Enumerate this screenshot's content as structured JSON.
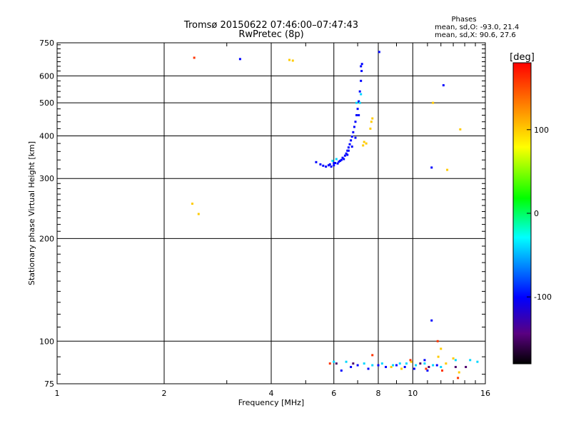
{
  "header": {
    "title": "Tromsø 20150622 07:46:00–07:47:43",
    "subtitle": "RwPretec (8p)"
  },
  "stats": {
    "heading": "Phases",
    "line_o": "mean, sd,O: -93.0, 21.4",
    "line_x": "mean, sd,X:  90.6, 27.6"
  },
  "chart_data": {
    "type": "scatter",
    "xlabel": "Frequency [MHz]",
    "ylabel": "Stationary phase Virtual Height [km]",
    "x_scale": "log",
    "y_scale": "log",
    "xlim": [
      1,
      16
    ],
    "ylim": [
      75,
      750
    ],
    "x_ticks": [
      1,
      2,
      4,
      6,
      8,
      10,
      16
    ],
    "y_ticks": [
      75,
      100,
      200,
      300,
      400,
      500,
      600,
      750
    ],
    "grid": true,
    "colorbar": {
      "label": "[deg]",
      "range": [
        -180,
        180
      ],
      "ticks": [
        100,
        0,
        -100
      ],
      "colormap": "rainbow"
    },
    "series": [
      {
        "color_value_deg": -100,
        "points": [
          [
            5.35,
            335
          ],
          [
            5.5,
            330
          ],
          [
            5.6,
            327
          ],
          [
            5.7,
            325
          ],
          [
            5.8,
            328
          ],
          [
            5.9,
            325
          ],
          [
            6.0,
            328
          ],
          [
            6.05,
            333
          ],
          [
            6.15,
            332
          ],
          [
            6.2,
            336
          ],
          [
            6.3,
            340
          ],
          [
            6.35,
            345
          ],
          [
            6.45,
            350
          ],
          [
            6.5,
            355
          ],
          [
            6.55,
            362
          ],
          [
            6.6,
            370
          ],
          [
            6.65,
            378
          ],
          [
            6.7,
            388
          ],
          [
            6.75,
            398
          ],
          [
            6.8,
            410
          ],
          [
            6.85,
            425
          ],
          [
            6.9,
            440
          ],
          [
            6.95,
            460
          ],
          [
            7.0,
            480
          ],
          [
            7.05,
            505
          ],
          [
            7.1,
            540
          ],
          [
            7.15,
            580
          ],
          [
            7.18,
            620
          ],
          [
            7.2,
            650
          ],
          [
            7.15,
            640
          ],
          [
            6.4,
            342
          ],
          [
            6.25,
            338
          ],
          [
            6.55,
            352
          ],
          [
            6.75,
            372
          ],
          [
            6.9,
            395
          ],
          [
            5.85,
            330
          ],
          [
            6.0,
            333
          ],
          [
            6.6,
            362
          ],
          [
            7.05,
            460
          ],
          [
            8.05,
            705
          ],
          [
            3.27,
            672
          ],
          [
            12.2,
            563
          ],
          [
            11.3,
            323
          ],
          [
            11.3,
            115
          ],
          [
            6.7,
            84
          ],
          [
            7.0,
            85
          ],
          [
            7.5,
            83
          ],
          [
            8.0,
            85
          ],
          [
            8.4,
            84
          ],
          [
            9.5,
            84
          ],
          [
            10.1,
            83
          ],
          [
            11.0,
            82
          ],
          [
            11.7,
            85
          ],
          [
            6.3,
            82
          ],
          [
            9.0,
            85
          ],
          [
            10.8,
            88
          ]
        ]
      },
      {
        "color_value_deg": 100,
        "points": [
          [
            7.25,
            375
          ],
          [
            7.4,
            380
          ],
          [
            7.6,
            420
          ],
          [
            7.65,
            440
          ],
          [
            7.7,
            450
          ],
          [
            4.5,
            668
          ],
          [
            4.6,
            665
          ],
          [
            12.5,
            318
          ],
          [
            13.6,
            418
          ],
          [
            11.4,
            500
          ],
          [
            2.4,
            253
          ],
          [
            2.5,
            236
          ],
          [
            7.3,
            384
          ],
          [
            12.0,
            95
          ],
          [
            11.8,
            90
          ],
          [
            12.4,
            86
          ],
          [
            13.0,
            89
          ],
          [
            9.9,
            87
          ],
          [
            8.7,
            84
          ],
          [
            9.3,
            83
          ],
          [
            13.5,
            81
          ]
        ]
      },
      {
        "color_value_deg": -40,
        "points": [
          [
            6.0,
            87
          ],
          [
            6.5,
            87
          ],
          [
            7.3,
            86
          ],
          [
            7.7,
            85
          ],
          [
            8.2,
            86
          ],
          [
            8.8,
            85
          ],
          [
            9.2,
            86
          ],
          [
            9.6,
            86
          ],
          [
            10.2,
            85
          ],
          [
            10.8,
            86
          ],
          [
            11.4,
            85
          ],
          [
            12.0,
            84
          ],
          [
            13.2,
            88
          ],
          [
            14.5,
            88
          ],
          [
            15.2,
            87
          ],
          [
            5.95,
            338
          ],
          [
            6.1,
            342
          ],
          [
            7.1,
            500
          ],
          [
            7.15,
            530
          ],
          [
            6.95,
            500
          ]
        ]
      },
      {
        "color_value_deg": 160,
        "points": [
          [
            2.43,
            678
          ],
          [
            11.75,
            100
          ],
          [
            12.1,
            82
          ],
          [
            13.4,
            78
          ],
          [
            5.85,
            86
          ],
          [
            7.7,
            91
          ],
          [
            9.85,
            88
          ],
          [
            10.9,
            83
          ]
        ]
      },
      {
        "color_value_deg": -150,
        "points": [
          [
            6.1,
            86
          ],
          [
            6.8,
            86
          ],
          [
            10.5,
            86
          ],
          [
            11.1,
            84
          ],
          [
            13.2,
            84
          ],
          [
            14.1,
            84
          ]
        ]
      }
    ]
  }
}
